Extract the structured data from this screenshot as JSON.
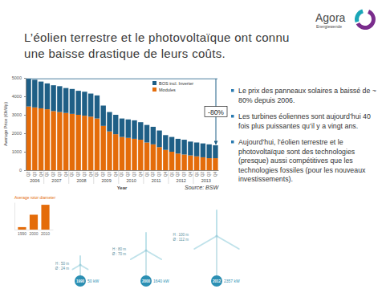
{
  "slide": {
    "title": "L’éolien terrestre et le photovoltaïque ont connu une baisse drastique de leurs coûts.",
    "logo": {
      "name": "Agora",
      "tagline": "Energiewende"
    },
    "bullets": [
      "Le prix des panneaux solaires a baissé de ~ 80% depuis 2006.",
      "Les turbines éoliennes sont aujourd’hui 40 fois plus puissantes qu’il y a vingt ans.",
      "Aujourd’hui, l’éolien terrestre et le photovoltaïque sont des technologies (presque) aussi compétitives que les technologies fossiles (pour les nouveaux investissements)."
    ],
    "turbines": [
      {
        "year": "1990",
        "power": "50 kW",
        "specs": [
          "H : 50 m",
          "Ø : 24 m"
        ]
      },
      {
        "year": "2000",
        "power": "1640 kW",
        "specs": [
          "H : 80 m",
          "Ø : 70 m"
        ]
      },
      {
        "year": "2012",
        "power": "2357 kW",
        "specs": [
          "H : 100 m",
          "Ø : 112 m"
        ]
      }
    ]
  },
  "chart_data": [
    {
      "type": "bar",
      "stacked": true,
      "y_label": "Average Price (€/kWp)",
      "x_label": "Year",
      "source": "Source: BSW",
      "categories": [
        "Q2",
        "Q3",
        "Q4",
        "Q1",
        "Q2",
        "Q3",
        "Q4",
        "Q1",
        "Q2",
        "Q3",
        "Q4",
        "Q1",
        "Q2",
        "Q3",
        "Q4",
        "Q1",
        "Q2",
        "Q3",
        "Q4",
        "Q1",
        "Q2",
        "Q3",
        "Q4",
        "Q1",
        "Q2",
        "Q3",
        "Q4",
        "Q1",
        "Q2",
        "Q3",
        "Q4"
      ],
      "x_groups": [
        "2006",
        "2007",
        "2008",
        "2009",
        "2010",
        "2011",
        "2012",
        "2013"
      ],
      "series": [
        {
          "name": "Modules",
          "color": "#e46c0a",
          "values": [
            3450,
            3400,
            3350,
            3300,
            3200,
            3150,
            3100,
            3050,
            3000,
            2950,
            2900,
            2800,
            2400,
            2100,
            1950,
            1800,
            1750,
            1700,
            1650,
            1500,
            1400,
            1250,
            1100,
            1000,
            900,
            850,
            800,
            750,
            700,
            650,
            650
          ]
        },
        {
          "name": "BOS incl. Inverter",
          "color": "#1f5f86",
          "values": [
            1500,
            1500,
            1450,
            1400,
            1400,
            1400,
            1350,
            1350,
            1300,
            1300,
            1250,
            1250,
            1100,
            1050,
            1050,
            1000,
            1000,
            1000,
            950,
            950,
            950,
            900,
            800,
            800,
            800,
            800,
            750,
            750,
            750,
            750,
            700
          ]
        }
      ],
      "ylim": [
        0,
        5000
      ],
      "yticks": [
        0,
        1000,
        2000,
        3000,
        4000,
        5000
      ],
      "grid": false,
      "legend": "top-right",
      "annotations": [
        {
          "text": "-80%"
        }
      ]
    },
    {
      "type": "bar",
      "title": "Average rotor diameter",
      "categories": [
        "1990",
        "2000",
        "2010"
      ],
      "values": [
        10,
        60,
        100
      ],
      "color": "#e46c0a",
      "ylim": [
        0,
        110
      ],
      "yticks": [],
      "tick_labels": "x"
    }
  ]
}
